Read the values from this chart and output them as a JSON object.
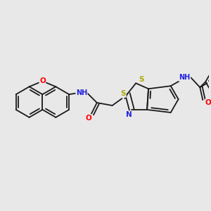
{
  "background_color": "#e8e8e8",
  "bond_color": "#1a1a1a",
  "bond_width": 1.3,
  "atom_colors": {
    "O": "#ff0000",
    "N": "#2222dd",
    "H": "#888888",
    "S": "#aaaa00",
    "C": "#1a1a1a"
  },
  "figsize": [
    3.0,
    3.0
  ],
  "dpi": 100
}
